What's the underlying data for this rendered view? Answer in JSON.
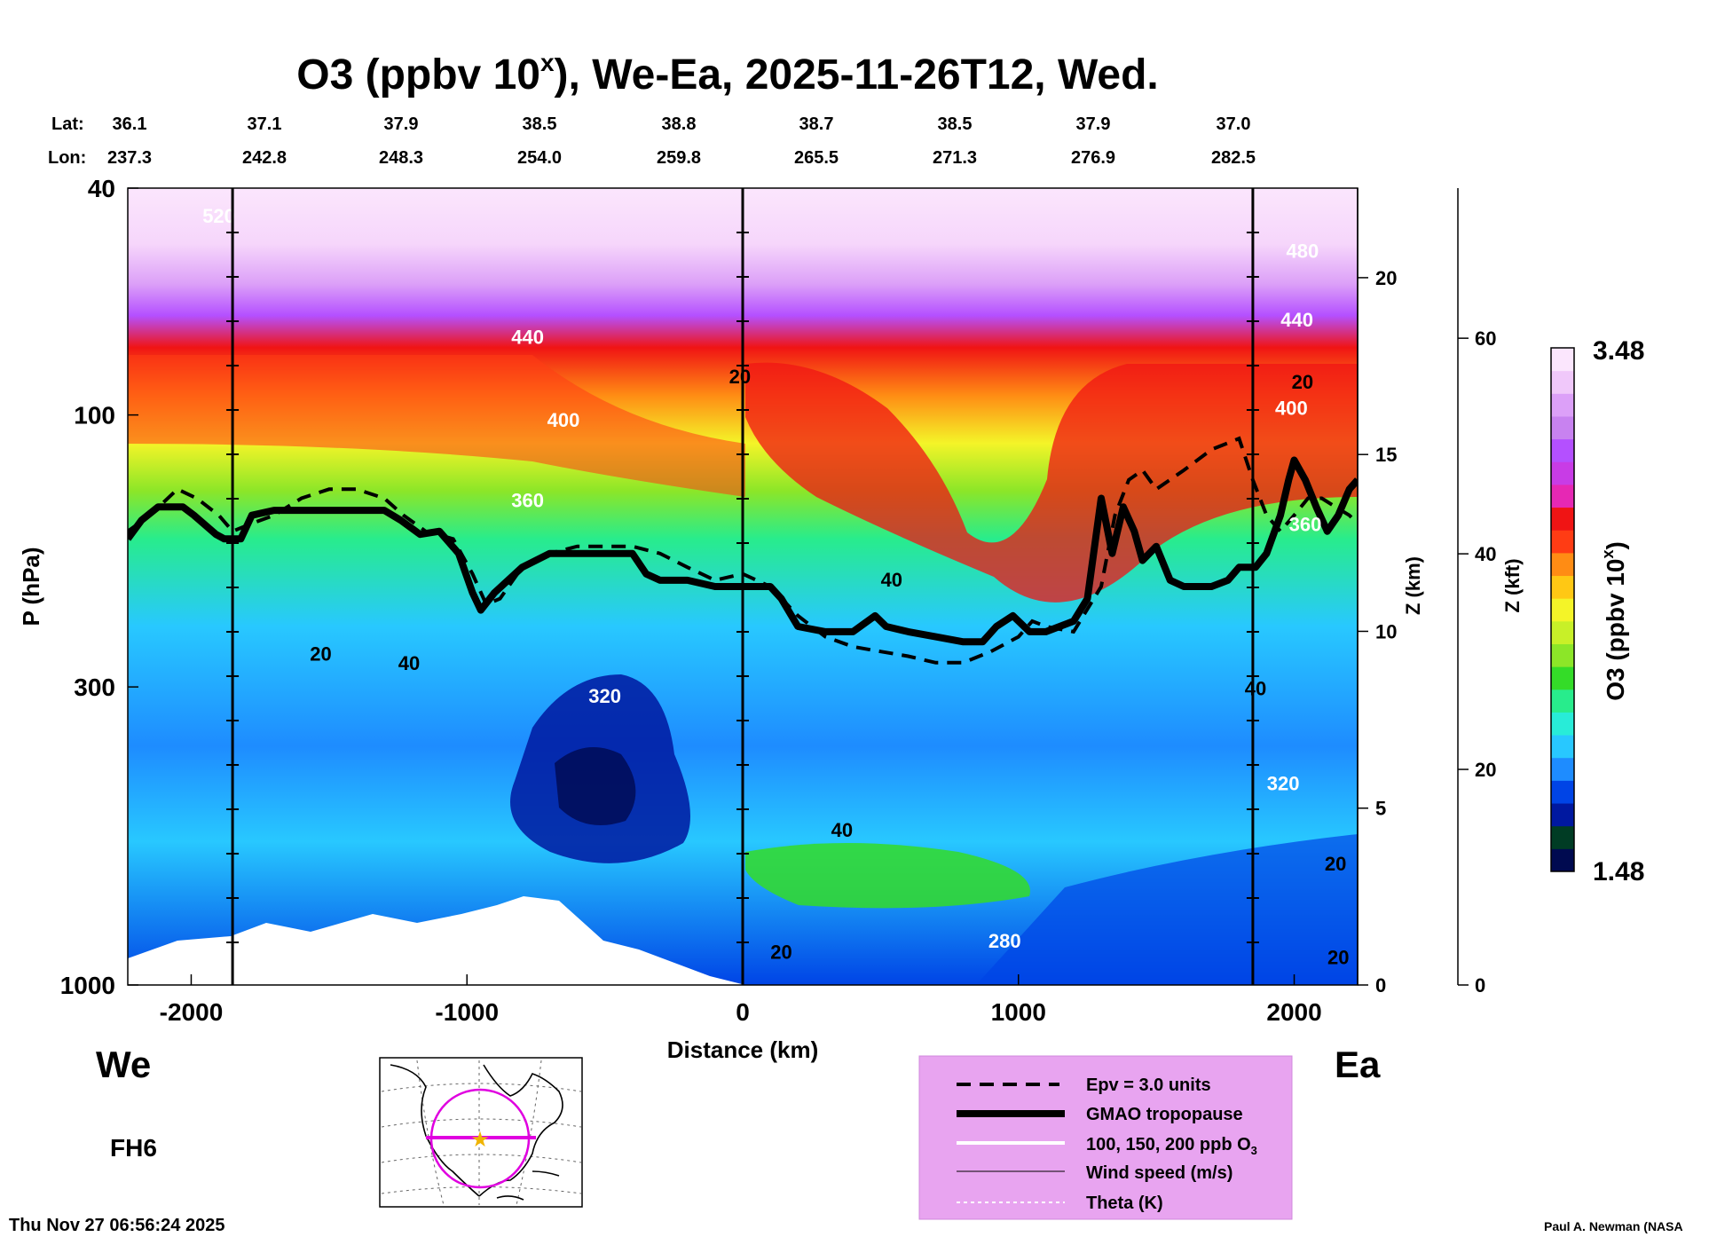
{
  "chart_data": {
    "type": "heatmap",
    "title_main": "O3 (ppbv 10",
    "title_sup": "x",
    "title_rest": "), We-Ea, 2025-11-26T12, Wed.",
    "lat_label": "Lat:",
    "lon_label": "Lon:",
    "lat": [
      "36.1",
      "37.1",
      "37.9",
      "38.5",
      "38.8",
      "38.7",
      "38.5",
      "37.9",
      "37.0"
    ],
    "lon": [
      "237.3",
      "242.8",
      "248.3",
      "254.0",
      "259.8",
      "265.5",
      "271.3",
      "276.9",
      "282.5"
    ],
    "xlabel": "Distance (km)",
    "x_ticks": [
      "-2000",
      "-1000",
      "0",
      "1000",
      "2000"
    ],
    "x_tick_values": [
      -2000,
      -1000,
      0,
      1000,
      2000
    ],
    "xlim": [
      -2230,
      2230
    ],
    "ylabel": "P (hPa)",
    "y_ticks": [
      "40",
      "100",
      "300",
      "1000"
    ],
    "y_tick_values": [
      40,
      100,
      300,
      1000
    ],
    "ylim": [
      1000,
      40
    ],
    "yscale": "log",
    "z_km_label": "Z (km)",
    "z_km_ticks": [
      "0",
      "5",
      "10",
      "15",
      "20"
    ],
    "z_kft_label": "Z (kft)",
    "z_kft_ticks": [
      "0",
      "20",
      "40",
      "60"
    ],
    "colorbar_label_main": "O3 (ppbv 10",
    "colorbar_label_sup": "x",
    "colorbar_label_end": ")",
    "colorbar_max": "3.48",
    "colorbar_min": "1.48",
    "colorbar_colors": [
      "#000a50",
      "#003c24",
      "#0018a0",
      "#0044e6",
      "#1e8cff",
      "#28c8ff",
      "#28ecd8",
      "#28ec8c",
      "#34dc28",
      "#8ce628",
      "#c8f028",
      "#f4f428",
      "#ffc814",
      "#ff8c14",
      "#ff3c14",
      "#f01414",
      "#e628b4",
      "#c83ce6",
      "#b450ff",
      "#c882f0",
      "#dca0f8",
      "#f0c8fa",
      "#fbe6fd"
    ],
    "west_label": "We",
    "east_label": "Ea",
    "forecast_label": "FH6",
    "timestamp": "Thu Nov 27 06:56:24 2025",
    "credit": "Paul A. Newman (NASA",
    "legend": [
      "Epv = 3.0 units",
      "GMAO tropopause",
      "100, 150, 200 ppb O",
      "Wind speed (m/s)",
      "Theta (K)"
    ],
    "legend_sub3": "3",
    "contour_labels": {
      "theta": [
        "520",
        "480",
        "440",
        "440",
        "400",
        "400",
        "360",
        "360",
        "320",
        "320",
        "280"
      ],
      "wind": [
        "20",
        "20",
        "20",
        "40",
        "40",
        "40",
        "40",
        "20",
        "20",
        "20"
      ]
    },
    "tropopause": {
      "distance_km": [
        -2230,
        -2180,
        -2120,
        -2030,
        -1990,
        -1910,
        -1880,
        -1820,
        -1780,
        -1700,
        -1600,
        -1500,
        -1400,
        -1300,
        -1240,
        -1170,
        -1100,
        -1030,
        -980,
        -950,
        -900,
        -800,
        -700,
        -600,
        -500,
        -400,
        -350,
        -300,
        -200,
        -100,
        0,
        100,
        140,
        200,
        300,
        400,
        480,
        520,
        600,
        700,
        800,
        870,
        920,
        980,
        1040,
        1100,
        1200,
        1250,
        1300,
        1340,
        1380,
        1420,
        1450,
        1500,
        1550,
        1600,
        1650,
        1700,
        1760,
        1800,
        1860,
        1900,
        1950,
        1980,
        2000,
        2040,
        2080,
        2120,
        2160,
        2200,
        2230
      ],
      "pressure_hPa": [
        165,
        153,
        145,
        145,
        150,
        162,
        165,
        165,
        150,
        147,
        147,
        147,
        147,
        147,
        153,
        162,
        160,
        175,
        205,
        220,
        205,
        185,
        175,
        175,
        175,
        175,
        190,
        195,
        195,
        200,
        200,
        200,
        210,
        235,
        240,
        240,
        225,
        235,
        240,
        245,
        250,
        250,
        235,
        225,
        240,
        240,
        230,
        210,
        140,
        175,
        145,
        160,
        180,
        170,
        195,
        200,
        200,
        200,
        195,
        185,
        185,
        175,
        150,
        130,
        120,
        130,
        145,
        160,
        150,
        135,
        130
      ]
    },
    "epv_3": {
      "distance_km": [
        -2230,
        -2150,
        -2050,
        -1980,
        -1900,
        -1850,
        -1780,
        -1700,
        -1600,
        -1500,
        -1400,
        -1300,
        -1230,
        -1150,
        -1050,
        -980,
        -930,
        -880,
        -800,
        -700,
        -600,
        -500,
        -400,
        -300,
        -200,
        -100,
        0,
        100,
        200,
        300,
        400,
        500,
        600,
        700,
        800,
        900,
        1000,
        1050,
        1100,
        1200,
        1300,
        1350,
        1400,
        1450,
        1500,
        1600,
        1700,
        1800,
        1850,
        1900,
        1950,
        2000,
        2050,
        2100,
        2150,
        2200,
        2230
      ],
      "pressure_hPa": [
        160,
        150,
        135,
        140,
        150,
        160,
        155,
        150,
        140,
        135,
        135,
        140,
        150,
        160,
        165,
        190,
        215,
        210,
        185,
        175,
        170,
        170,
        170,
        175,
        185,
        195,
        190,
        200,
        225,
        245,
        255,
        260,
        265,
        272,
        272,
        260,
        245,
        230,
        235,
        240,
        200,
        150,
        130,
        125,
        135,
        125,
        115,
        110,
        130,
        150,
        160,
        150,
        140,
        140,
        145,
        150,
        155
      ]
    },
    "vertical_markers_km": [
      -1850,
      0,
      1850
    ]
  }
}
